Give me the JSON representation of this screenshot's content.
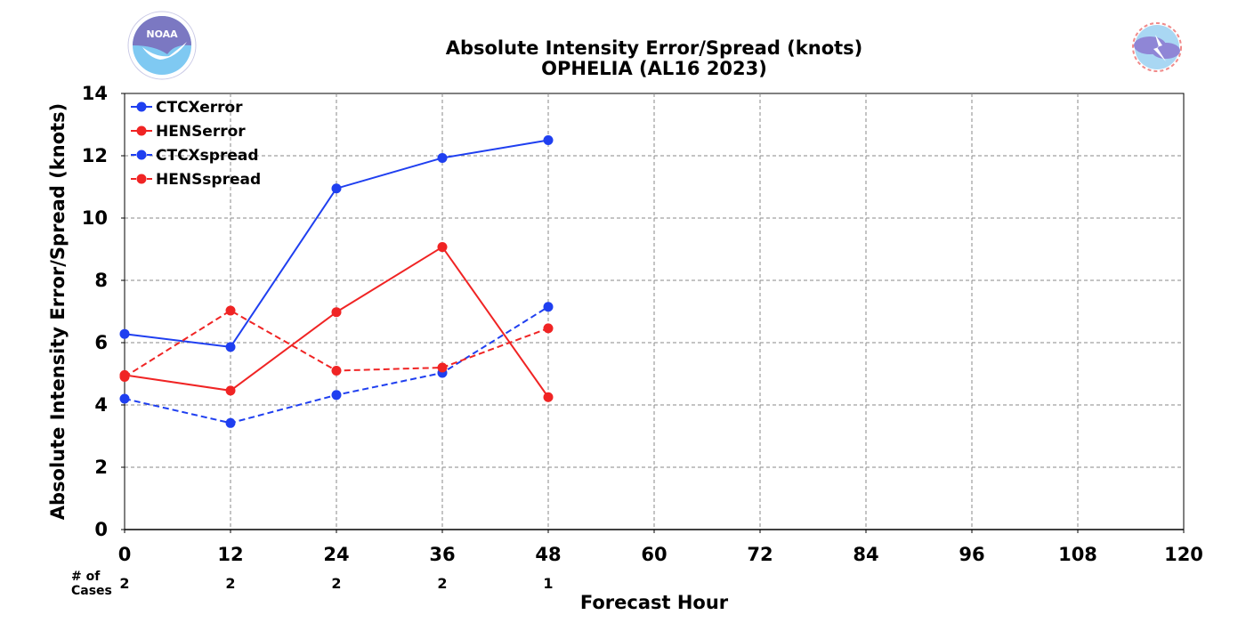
{
  "chart_data": {
    "type": "line",
    "title": "Absolute Intensity Error/Spread (knots)",
    "subtitle": "OPHELIA (AL16 2023)",
    "xlabel": "Forecast Hour",
    "ylabel": "Absolute Intensity Error/Spread (knots)",
    "xlim": [
      0,
      120
    ],
    "ylim": [
      0,
      14
    ],
    "x_ticks": [
      "0",
      "12",
      "24",
      "36",
      "48",
      "60",
      "72",
      "84",
      "96",
      "108",
      "120"
    ],
    "y_ticks": [
      "0",
      "2",
      "4",
      "6",
      "8",
      "10",
      "12",
      "14"
    ],
    "grid": true,
    "legend_position": "top-left",
    "cases_label": "# of Cases",
    "cases_label_lines": [
      "# of",
      "Cases"
    ],
    "cases": [
      {
        "x": 0,
        "count": "2"
      },
      {
        "x": 12,
        "count": "2"
      },
      {
        "x": 24,
        "count": "2"
      },
      {
        "x": 36,
        "count": "2"
      },
      {
        "x": 48,
        "count": "1"
      }
    ],
    "series": [
      {
        "name": "CTCXerror",
        "color": "#1f3ff0",
        "style": "solid",
        "x": [
          0,
          12,
          24,
          36,
          48
        ],
        "values": [
          6.28,
          5.86,
          10.95,
          11.93,
          12.5
        ]
      },
      {
        "name": "HENSerror",
        "color": "#f02424",
        "style": "solid",
        "x": [
          0,
          12,
          24,
          36,
          48
        ],
        "values": [
          4.96,
          4.46,
          6.98,
          9.07,
          4.25
        ]
      },
      {
        "name": "CTCXspread",
        "color": "#1f3ff0",
        "style": "dashed",
        "x": [
          0,
          12,
          24,
          36,
          48
        ],
        "values": [
          4.2,
          3.42,
          4.32,
          5.03,
          7.15
        ]
      },
      {
        "name": "HENSspread",
        "color": "#f02424",
        "style": "dashed",
        "x": [
          0,
          12,
          24,
          36,
          48
        ],
        "values": [
          4.9,
          7.03,
          5.1,
          5.2,
          6.46
        ]
      }
    ]
  },
  "logos": {
    "left": {
      "icon": "noaa-logo-icon",
      "text": "NOAA"
    },
    "right": {
      "icon": "nws-logo-icon",
      "text": "NATIONAL WEATHER SERVICE"
    }
  }
}
